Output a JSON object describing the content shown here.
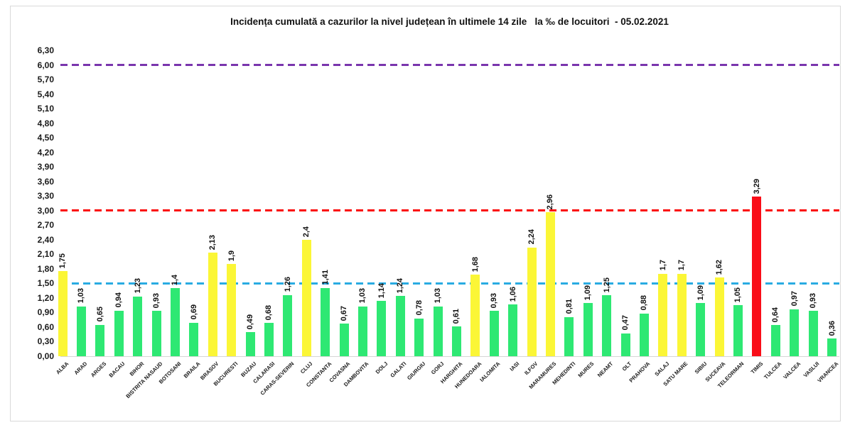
{
  "chart_data": {
    "type": "bar",
    "title": "Incidența cumulată a cazurilor la nivel județean în ultimele 14 zile   la ‰ de locuitori  - 05.02.2021",
    "categories": [
      "ALBA",
      "ARAD",
      "ARGES",
      "BACAU",
      "BIHOR",
      "BISTRITA NASAUD",
      "BOTOSANI",
      "BRAILA",
      "BRASOV",
      "BUCURESTI",
      "BUZAU",
      "CALARASI",
      "CARAS-SEVERIN",
      "CLUJ",
      "CONSTANTA",
      "COVASNA",
      "DAMBOVITA",
      "DOLJ",
      "GALATI",
      "GIURGIU",
      "GORJ",
      "HARGHITA",
      "HUNEDOARA",
      "IALOMITA",
      "IASI",
      "ILFOV",
      "MARAMURES",
      "MEHEDINTI",
      "MURES",
      "NEAMT",
      "OLT",
      "PRAHOVA",
      "SALAJ",
      "SATU MARE",
      "SIBIU",
      "SUCEAVA",
      "TELEORMAN",
      "TIMIS",
      "TULCEA",
      "VALCEA",
      "VASLUI",
      "VRANCEA"
    ],
    "values": [
      1.75,
      1.03,
      0.65,
      0.94,
      1.23,
      0.93,
      1.4,
      0.69,
      2.13,
      1.9,
      0.49,
      0.68,
      1.26,
      2.4,
      1.41,
      0.67,
      1.03,
      1.14,
      1.24,
      0.78,
      1.03,
      0.61,
      1.68,
      0.93,
      1.06,
      2.24,
      2.96,
      0.81,
      1.09,
      1.25,
      0.47,
      0.88,
      1.7,
      1.7,
      1.09,
      1.62,
      1.05,
      3.29,
      0.64,
      0.97,
      0.93,
      0.36
    ],
    "value_labels": [
      "1,75",
      "1,03",
      "0,65",
      "0,94",
      "1,23",
      "0,93",
      "1,4",
      "0,69",
      "2,13",
      "1,9",
      "0,49",
      "0,68",
      "1,26",
      "2,4",
      "1,41",
      "0,67",
      "1,03",
      "1,14",
      "1,24",
      "0,78",
      "1,03",
      "0,61",
      "1,68",
      "0,93",
      "1,06",
      "2,24",
      "2,96",
      "0,81",
      "1,09",
      "1,25",
      "0,47",
      "0,88",
      "1,7",
      "1,7",
      "1,09",
      "1,62",
      "1,05",
      "3,29",
      "0,64",
      "0,97",
      "0,93",
      "0,36"
    ],
    "xlabel": "",
    "ylabel": "",
    "ylim": [
      0,
      6.3
    ],
    "y_tick_step": 0.3,
    "y_tick_labels": [
      "0,00",
      "0,30",
      "0,60",
      "0,90",
      "1,20",
      "1,50",
      "1,80",
      "2,10",
      "2,40",
      "2,70",
      "3,00",
      "3,30",
      "3,60",
      "3,90",
      "4,20",
      "4,50",
      "4,80",
      "5,10",
      "5,40",
      "5,70",
      "6,00",
      "6,30"
    ],
    "grid": false,
    "legend": false,
    "bar_palette": {
      "green": "#2ee873",
      "yellow": "#fbf636",
      "red": "#f90d18"
    },
    "color_rules": {
      "green_max": 1.5,
      "yellow_max": 3.0
    },
    "reference_lines": [
      {
        "value": 1.5,
        "color": "#29abe2",
        "style": "dashed"
      },
      {
        "value": 3.0,
        "color": "#fb0a0a",
        "style": "dashed"
      },
      {
        "value": 6.0,
        "color": "#7a35ad",
        "style": "dashed"
      }
    ]
  }
}
